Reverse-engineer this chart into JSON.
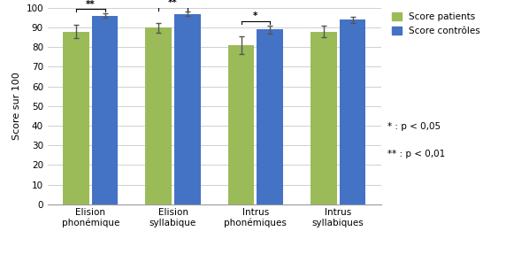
{
  "categories": [
    "Elision\nphonémique",
    "Elision\nsyllabique",
    "Intrus\nphonémiques",
    "Intrus\nsyllabiques"
  ],
  "patients_values": [
    88,
    90,
    81,
    88
  ],
  "controls_values": [
    96,
    97,
    89,
    94
  ],
  "patients_errors": [
    3.5,
    2.5,
    4.5,
    3.0
  ],
  "controls_errors": [
    1.2,
    1.0,
    2.0,
    1.5
  ],
  "patients_color": "#9BBB59",
  "controls_color": "#4472C4",
  "ylabel": "Score sur 100",
  "ylim": [
    0,
    100
  ],
  "yticks": [
    0,
    10,
    20,
    30,
    40,
    50,
    60,
    70,
    80,
    90,
    100
  ],
  "legend_patients": "Score patients",
  "legend_controls": "Score contrôles",
  "significance": [
    "**",
    "**",
    "*",
    ""
  ],
  "background_color": "#FFFFFF",
  "grid_color": "#D0D0D0"
}
